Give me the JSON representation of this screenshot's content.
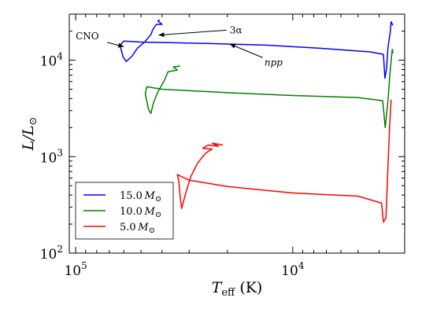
{
  "chart_data": {
    "type": "line",
    "title": "",
    "xlabel": "T_eff (K)",
    "xlabel_parts": {
      "main": "T",
      "sub": "eff",
      "unit": " (K)"
    },
    "ylabel": "L/L_⊙",
    "ylabel_parts": {
      "main": "L/L",
      "sub": "⊙"
    },
    "x_scale": "log",
    "x_reversed": true,
    "y_scale": "log",
    "xlim": [
      107000,
      3050
    ],
    "ylim": [
      100,
      30000
    ],
    "grid": false,
    "x_ticks": [
      {
        "value": 100000,
        "base": "10",
        "exp": "5"
      },
      {
        "value": 10000,
        "base": "10",
        "exp": "4"
      }
    ],
    "y_ticks": [
      {
        "value": 100,
        "base": "10",
        "exp": "2"
      },
      {
        "value": 1000,
        "base": "10",
        "exp": "3"
      },
      {
        "value": 10000,
        "base": "10",
        "exp": "4"
      }
    ],
    "legend": {
      "placement": "lower-left"
    },
    "series": [
      {
        "name": "15.0 M_⊙",
        "label_value": "15.0",
        "label_sym": "M",
        "label_sub": "⊙",
        "color": "#0000ff",
        "points": [
          [
            3460,
            23000
          ],
          [
            3520,
            25000
          ],
          [
            3560,
            19000
          ],
          [
            3640,
            13600
          ],
          [
            3700,
            8000
          ],
          [
            3760,
            6500
          ],
          [
            3820,
            11500
          ],
          [
            4400,
            12200
          ],
          [
            7500,
            13300
          ],
          [
            13000,
            14300
          ],
          [
            25000,
            14900
          ],
          [
            50000,
            15400
          ],
          [
            60000,
            15800
          ],
          [
            62500,
            14300
          ],
          [
            60500,
            10800
          ],
          [
            58500,
            9700
          ],
          [
            55000,
            11000
          ],
          [
            52000,
            13300
          ],
          [
            48000,
            15500
          ],
          [
            45000,
            18500
          ],
          [
            44000,
            21000
          ],
          [
            42500,
            23500
          ],
          [
            40000,
            23500
          ],
          [
            41800,
            25500
          ],
          [
            41000,
            26300
          ]
        ]
      },
      {
        "name": "10.0 M_⊙",
        "label_value": "10.0",
        "label_sym": "M",
        "label_sub": "⊙",
        "color": "#008000",
        "points": [
          [
            3450,
            11800
          ],
          [
            3480,
            13000
          ],
          [
            3560,
            7600
          ],
          [
            3640,
            3800
          ],
          [
            3750,
            2000
          ],
          [
            3850,
            3800
          ],
          [
            5000,
            4100
          ],
          [
            10000,
            4300
          ],
          [
            20000,
            4600
          ],
          [
            40000,
            5000
          ],
          [
            47000,
            5300
          ],
          [
            47800,
            4500
          ],
          [
            46200,
            3100
          ],
          [
            45000,
            2800
          ],
          [
            44000,
            3500
          ],
          [
            42000,
            4600
          ],
          [
            39000,
            6200
          ],
          [
            37500,
            7600
          ],
          [
            34000,
            7900
          ],
          [
            35500,
            8500
          ],
          [
            33000,
            8700
          ]
        ]
      },
      {
        "name": "5.0 M_⊙",
        "label_value": "5.0",
        "label_sym": "M",
        "label_sub": "⊙",
        "color": "#ff0000",
        "points": [
          [
            3520,
            3900
          ],
          [
            3580,
            2000
          ],
          [
            3640,
            800
          ],
          [
            3720,
            230
          ],
          [
            3820,
            210
          ],
          [
            3900,
            330
          ],
          [
            5000,
            390
          ],
          [
            10000,
            420
          ],
          [
            15000,
            460
          ],
          [
            20000,
            490
          ],
          [
            30000,
            570
          ],
          [
            34000,
            650
          ],
          [
            33500,
            560
          ],
          [
            33000,
            380
          ],
          [
            32500,
            290
          ],
          [
            31000,
            430
          ],
          [
            29500,
            620
          ],
          [
            27500,
            850
          ],
          [
            26000,
            1000
          ],
          [
            25000,
            1100
          ],
          [
            23500,
            1200
          ],
          [
            26000,
            1220
          ],
          [
            24500,
            1320
          ],
          [
            22000,
            1280
          ],
          [
            23500,
            1380
          ],
          [
            21000,
            1320
          ]
        ]
      }
    ],
    "annotations": [
      {
        "text": "CNO",
        "italic": false,
        "text_at": [
          100000,
          16500
        ],
        "arrow_to": [
          60000,
          13800
        ]
      },
      {
        "text": "3α",
        "italic": false,
        "text_at": [
          19500,
          19000
        ],
        "arrow_to": [
          41500,
          18200
        ]
      },
      {
        "text": "npp",
        "italic": true,
        "text_at": [
          13500,
          8800
        ],
        "arrow_to": [
          19500,
          14700
        ]
      }
    ]
  }
}
